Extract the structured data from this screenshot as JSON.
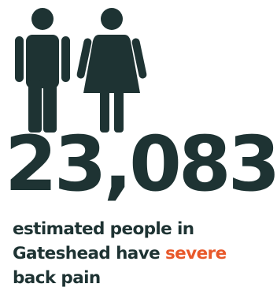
{
  "icons": {
    "man": "man-icon",
    "woman": "woman-icon"
  },
  "colors": {
    "text": "#1e3333",
    "highlight": "#e8582a",
    "background": "#ffffff"
  },
  "stat": {
    "value": "23,083"
  },
  "caption": {
    "line1": "estimated people in",
    "line2_before": "Gateshead have ",
    "line2_highlight": "severe",
    "line3": "back pain"
  }
}
